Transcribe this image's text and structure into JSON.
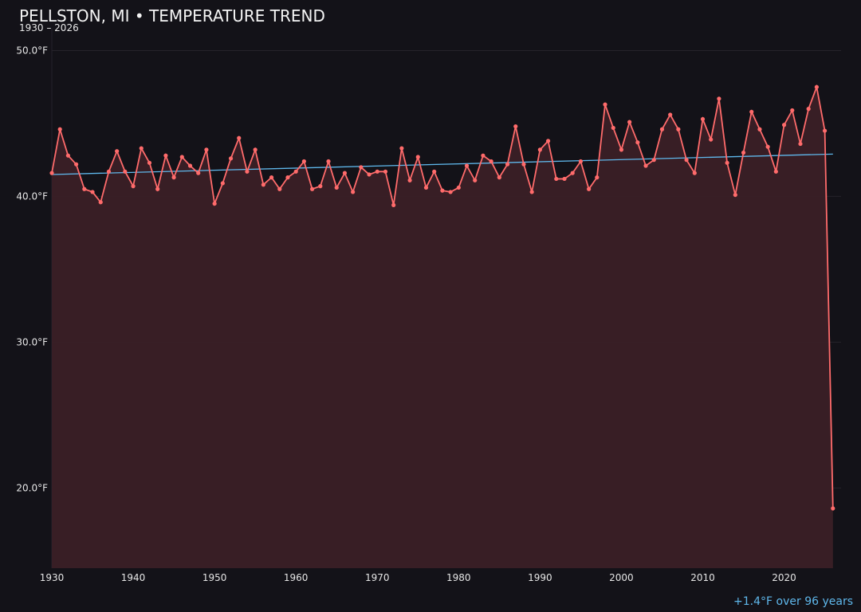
{
  "chart_data": {
    "type": "line",
    "title": "PELLSTON, MI • TEMPERATURE TREND",
    "subtitle": "1930 – 2026",
    "annotation": "+1.4°F over 96 years",
    "xlabel": "",
    "ylabel": "",
    "xlim": [
      1930,
      2027
    ],
    "ylim": [
      14.5,
      51.5
    ],
    "grid": true,
    "x_ticks": [
      "1930",
      "1940",
      "1950",
      "1960",
      "1970",
      "1980",
      "1990",
      "2000",
      "2010",
      "2020"
    ],
    "y_ticks": [
      "20.0°F",
      "30.0°F",
      "40.0°F",
      "50.0°F"
    ],
    "y_tick_values": [
      20,
      30,
      40,
      50
    ],
    "colors": {
      "series": "#ff6b6b",
      "fill": "#3a2026",
      "trend": "#5fb8ec",
      "background": "#131218"
    },
    "series": [
      {
        "x": [
          1930,
          1931,
          1932,
          1933,
          1934,
          1935,
          1936,
          1937,
          1938,
          1939,
          1940,
          1941,
          1942,
          1943,
          1944,
          1945,
          1946,
          1947,
          1948,
          1949,
          1950,
          1951,
          1952,
          1953,
          1954,
          1955,
          1956,
          1957,
          1958,
          1959,
          1960,
          1961,
          1962,
          1963,
          1964,
          1965,
          1966,
          1967,
          1968,
          1969,
          1970,
          1971,
          1972,
          1973,
          1974,
          1975,
          1976,
          1977,
          1978,
          1979,
          1980,
          1981,
          1982,
          1983,
          1984,
          1985,
          1986,
          1987,
          1988,
          1989,
          1990,
          1991,
          1992,
          1993,
          1994,
          1995,
          1996,
          1997,
          1998,
          1999,
          2000,
          2001,
          2002,
          2003,
          2004,
          2005,
          2006,
          2007,
          2008,
          2009,
          2010,
          2011,
          2012,
          2013,
          2014,
          2015,
          2016,
          2017,
          2018,
          2019,
          2020,
          2021,
          2022,
          2023,
          2024,
          2025,
          2026
        ],
        "values": [
          41.6,
          44.6,
          42.8,
          42.2,
          40.5,
          40.3,
          39.6,
          41.7,
          43.1,
          41.7,
          40.7,
          43.3,
          42.3,
          40.5,
          42.8,
          41.3,
          42.7,
          42.1,
          41.6,
          43.2,
          39.5,
          40.9,
          42.6,
          44.0,
          41.7,
          43.2,
          40.8,
          41.3,
          40.5,
          41.3,
          41.7,
          42.4,
          40.5,
          40.7,
          42.4,
          40.6,
          41.6,
          40.3,
          42.0,
          41.5,
          41.7,
          41.7,
          39.4,
          43.3,
          41.1,
          42.7,
          40.6,
          41.7,
          40.4,
          40.3,
          40.6,
          42.1,
          41.1,
          42.8,
          42.4,
          41.3,
          42.2,
          44.8,
          42.2,
          40.3,
          43.2,
          43.8,
          41.2,
          41.2,
          41.6,
          42.4,
          40.5,
          41.3,
          46.3,
          44.7,
          43.2,
          45.1,
          43.7,
          42.1,
          42.5,
          44.6,
          45.6,
          44.6,
          42.5,
          41.6,
          45.3,
          43.9,
          46.7,
          42.3,
          40.1,
          43.0,
          45.8,
          44.6,
          43.4,
          41.7,
          44.9,
          45.9,
          43.6,
          46.0,
          47.5,
          44.5,
          18.6
        ]
      }
    ],
    "trend": {
      "x": [
        1930,
        2026
      ],
      "values": [
        41.5,
        42.9
      ]
    }
  }
}
